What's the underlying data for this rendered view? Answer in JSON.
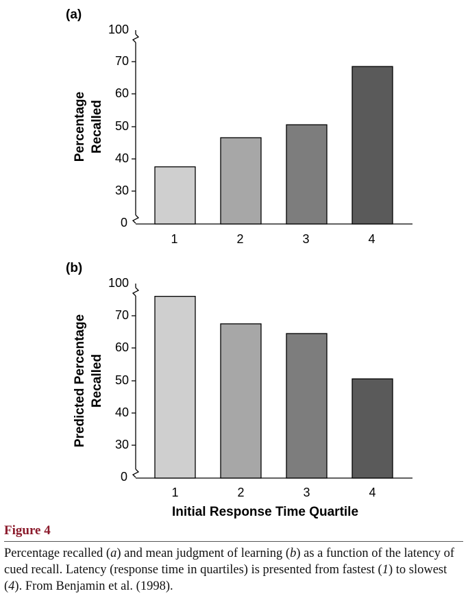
{
  "chart_data": [
    {
      "type": "bar",
      "panel_label": "(a)",
      "categories": [
        "1",
        "2",
        "3",
        "4"
      ],
      "values": [
        37.5,
        46.5,
        50.5,
        68.5
      ],
      "ylabel_lines": [
        "Percentage",
        "Recalled"
      ],
      "xlabel": "",
      "yticks": [
        0,
        30,
        40,
        50,
        60,
        70,
        100
      ],
      "ylim": [
        0,
        100
      ],
      "axis_break": true,
      "bar_colors": [
        "#cfcfcf",
        "#a7a7a7",
        "#7d7d7d",
        "#5a5a5a"
      ],
      "grid": false
    },
    {
      "type": "bar",
      "panel_label": "(b)",
      "categories": [
        "1",
        "2",
        "3",
        "4"
      ],
      "values": [
        76,
        67.5,
        64.5,
        50.5
      ],
      "ylabel_lines": [
        "Predicted Percentage",
        "Recalled"
      ],
      "xlabel": "Initial Response Time Quartile",
      "yticks": [
        0,
        30,
        40,
        50,
        60,
        70,
        100
      ],
      "ylim": [
        0,
        100
      ],
      "axis_break": true,
      "bar_colors": [
        "#cfcfcf",
        "#a7a7a7",
        "#7d7d7d",
        "#5a5a5a"
      ],
      "grid": false
    }
  ],
  "figure": {
    "title": "Figure 4",
    "caption_parts": [
      {
        "text": "Percentage recalled (",
        "italic": false
      },
      {
        "text": "a",
        "italic": true
      },
      {
        "text": ") and mean judgment of learning (",
        "italic": false
      },
      {
        "text": "b",
        "italic": true
      },
      {
        "text": ") as a function of the latency of cued recall. Latency (response time in quartiles) is presented from fastest (",
        "italic": false
      },
      {
        "text": "1",
        "italic": true
      },
      {
        "text": ") to slowest (",
        "italic": false
      },
      {
        "text": "4",
        "italic": true
      },
      {
        "text": "). From Benjamin et al. (1998).",
        "italic": false
      }
    ]
  }
}
